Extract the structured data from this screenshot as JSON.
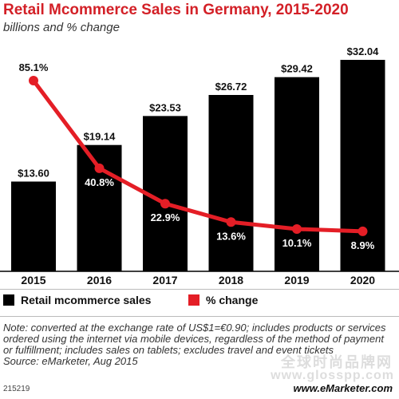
{
  "chart_data": {
    "type": "bar",
    "title": "Retail Mcommerce Sales in Germany, 2015-2020",
    "subtitle": "billions and % change",
    "categories": [
      "2015",
      "2016",
      "2017",
      "2018",
      "2019",
      "2020"
    ],
    "series": [
      {
        "name": "Retail mcommerce sales",
        "type": "bar",
        "values": [
          13.6,
          19.14,
          23.53,
          26.72,
          29.42,
          32.04
        ],
        "labels": [
          "$13.60",
          "$19.14",
          "$23.53",
          "$26.72",
          "$29.42",
          "$32.04"
        ]
      },
      {
        "name": "% change",
        "type": "line",
        "values": [
          85.1,
          40.8,
          22.9,
          13.6,
          10.1,
          8.9
        ],
        "labels": [
          "85.1%",
          "40.8%",
          "22.9%",
          "13.6%",
          "10.1%",
          "8.9%"
        ]
      }
    ],
    "legend": "bottom-left",
    "grid": false,
    "colors": {
      "bar": "#000000",
      "line": "#e41e26",
      "title": "#d32027"
    }
  },
  "note": "Note: converted at the exchange rate of US$1=€0.90; includes products or services ordered using the internet via mobile devices, regardless of the method of payment or fulfillment; includes sales on tablets; excludes travel and event tickets",
  "source": "Source: eMarketer, Aug 2015",
  "footer": {
    "id": "215219",
    "brand": "www.eMarketer.com"
  },
  "watermark": {
    "text": "全球时尚品牌网",
    "url": "www.glosspp.com"
  }
}
